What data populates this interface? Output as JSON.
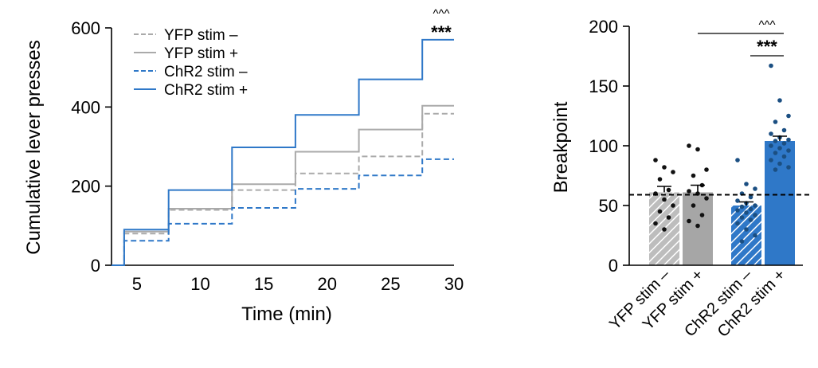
{
  "chart_data": [
    {
      "type": "line",
      "xlabel": "Time (min)",
      "ylabel": "Cumulative lever presses",
      "xlim": [
        3,
        30
      ],
      "ylim": [
        0,
        600
      ],
      "xticks": [
        5,
        10,
        15,
        20,
        25,
        30
      ],
      "yticks": [
        0,
        200,
        400,
        600
      ],
      "legend_position": "top-left",
      "significance": [
        "^^^",
        "***"
      ],
      "series": [
        {
          "name": "YFP stim –",
          "color": "#aaaaaa",
          "dashed": true,
          "x": [
            4,
            7.5,
            12.5,
            17.5,
            22.5,
            27.5,
            30
          ],
          "y": [
            80,
            140,
            190,
            232,
            275,
            383,
            383
          ]
        },
        {
          "name": "YFP stim +",
          "color": "#aaaaaa",
          "dashed": false,
          "x": [
            4,
            7.5,
            12.5,
            17.5,
            22.5,
            27.5,
            30
          ],
          "y": [
            85,
            143,
            205,
            287,
            343,
            403,
            403
          ]
        },
        {
          "name": "ChR2 stim –",
          "color": "#2f78c8",
          "dashed": true,
          "x": [
            4,
            7.5,
            12.5,
            17.5,
            22.5,
            27.5,
            30
          ],
          "y": [
            62,
            105,
            145,
            193,
            227,
            268,
            268
          ]
        },
        {
          "name": "ChR2 stim +",
          "color": "#2f78c8",
          "dashed": false,
          "x": [
            4,
            7.5,
            12.5,
            17.5,
            22.5,
            27.5,
            30
          ],
          "y": [
            90,
            190,
            298,
            380,
            470,
            570,
            570
          ]
        }
      ]
    },
    {
      "type": "bar",
      "ylabel": "Breakpoint",
      "ylim": [
        0,
        200
      ],
      "yticks": [
        0,
        50,
        100,
        150,
        200
      ],
      "reference_line": 59,
      "significance": [
        "^^^",
        "***"
      ],
      "categories": [
        "YFP stim –",
        "YFP stim +",
        "ChR2 stim –",
        "ChR2 stim +"
      ],
      "values": [
        61,
        61,
        50,
        104
      ],
      "sem": [
        5,
        6,
        3,
        4
      ],
      "bar_colors": [
        "#bdbdbd",
        "#a6a6a6",
        "#2f78c8",
        "#2f78c8"
      ],
      "hatched": [
        true,
        false,
        true,
        false
      ],
      "dot_colors": [
        "#111111",
        "#111111",
        "#1b4f82",
        "#1b4f82"
      ],
      "points": [
        [
          88,
          82,
          78,
          72,
          63,
          60,
          55,
          50,
          45,
          40,
          35,
          30
        ],
        [
          100,
          97,
          80,
          75,
          67,
          62,
          60,
          56,
          50,
          42,
          37,
          33
        ],
        [
          88,
          68,
          64,
          60,
          57,
          54,
          52,
          50,
          49,
          47,
          46,
          44,
          42,
          40,
          38,
          35,
          30,
          25,
          20
        ],
        [
          167,
          138,
          125,
          120,
          113,
          110,
          107,
          105,
          104,
          102,
          100,
          98,
          96,
          94,
          91,
          88,
          85,
          82,
          80
        ]
      ]
    }
  ]
}
